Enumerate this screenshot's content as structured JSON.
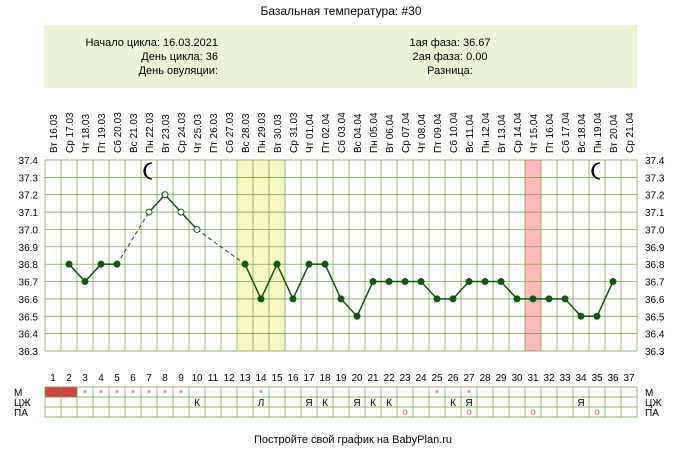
{
  "page": {
    "title": "Базальная температура: #30",
    "footer": "Постройте свой график на BabyPlan.ru"
  },
  "info": {
    "cycle_start_label": "Начало цикла: 16.03.2021",
    "cycle_day_label": "День цикла: 36",
    "ovulation_day_label": "День овуляции:",
    "phase1_label": "1ая фаза: 36.67",
    "phase2_label": "2ая фаза: 0.00",
    "difference_label": "Разница:"
  },
  "colors": {
    "line": "#0a5a0a",
    "grid": "#6c9c3c",
    "box": "#e9f5d6",
    "yellow_band": "#f7f7c4",
    "pink_band": "#ffb9b9",
    "menses": "#cf4545",
    "star": "#e06060"
  },
  "chart_data": {
    "type": "line",
    "title": "Базальная температура: #30",
    "ylim": [
      36.3,
      37.4
    ],
    "yticks": [
      "37.4",
      "37.3",
      "37.2",
      "37.1",
      "37.0",
      "36.9",
      "36.8",
      "36.7",
      "36.6",
      "36.5",
      "36.4",
      "36.3"
    ],
    "grid": true,
    "dates": [
      "Вт 16.03",
      "Ср 17.03",
      "Чт 18.03",
      "Пт 19.03",
      "Сб 20.03",
      "Вс 21.03",
      "Пн 22.03",
      "Вт 23.03",
      "Ср 24.03",
      "Чт 25.03",
      "Пт 26.03",
      "Сб 27.03",
      "Вс 28.03",
      "Пн 29.03",
      "Вт 30.03",
      "Ср 31.03",
      "Чт 01.04",
      "Пт 02.04",
      "Сб 03.04",
      "Вс 04.04",
      "Пн 05.04",
      "Вт 06.04",
      "Ср 07.04",
      "Чт 08.04",
      "Пт 09.04",
      "Сб 10.04",
      "Вс 11.04",
      "Пн 12.04",
      "Вт 13.04",
      "Ср 14.04",
      "Чт 15.04",
      "Пт 16.04",
      "Сб 17.04",
      "Вс 18.04",
      "Пн 19.04",
      "Вт 20.04",
      "Ср 21.04"
    ],
    "days": [
      "1",
      "2",
      "3",
      "4",
      "5",
      "6",
      "7",
      "8",
      "9",
      "10",
      "11",
      "12",
      "13",
      "14",
      "15",
      "16",
      "17",
      "18",
      "19",
      "20",
      "21",
      "22",
      "23",
      "24",
      "25",
      "26",
      "27",
      "28",
      "29",
      "30",
      "31",
      "32",
      "33",
      "34",
      "35",
      "36",
      "37"
    ],
    "series": [
      {
        "values": [
          null,
          36.8,
          36.7,
          36.8,
          36.8,
          null,
          37.1,
          37.2,
          37.1,
          37.0,
          null,
          null,
          36.8,
          36.6,
          36.8,
          36.6,
          36.8,
          36.8,
          36.6,
          36.5,
          36.7,
          36.7,
          36.7,
          36.7,
          36.6,
          36.6,
          36.7,
          36.7,
          36.7,
          36.6,
          36.6,
          36.6,
          36.6,
          36.5,
          36.5,
          36.7,
          null
        ],
        "open_points": [
          6,
          7,
          8,
          9
        ]
      }
    ],
    "dashed_segments": [
      [
        5,
        7
      ],
      [
        10,
        13
      ]
    ],
    "highlight_bands": [
      {
        "from_day": 13,
        "to_day": 15,
        "color": "yellow"
      },
      {
        "from_day": 31,
        "to_day": 31,
        "color": "pink"
      }
    ],
    "moon_days": [
      7,
      35
    ],
    "row_labels": [
      "М",
      "ЦЖ",
      "ПА"
    ],
    "menses_days": [
      1,
      2
    ],
    "star_days": [
      3,
      4,
      5,
      6,
      7,
      8,
      9,
      14,
      25,
      27
    ],
    "cm_marks": [
      {
        "day": 10,
        "text": "К"
      },
      {
        "day": 14,
        "text": "Л"
      },
      {
        "day": 17,
        "text": "Я"
      },
      {
        "day": 18,
        "text": "К"
      },
      {
        "day": 20,
        "text": "Я"
      },
      {
        "day": 21,
        "text": "К"
      },
      {
        "day": 22,
        "text": "К"
      },
      {
        "day": 26,
        "text": "К"
      },
      {
        "day": 27,
        "text": "Я"
      },
      {
        "day": 34,
        "text": "Я"
      }
    ],
    "pa_marks": [
      {
        "day": 23,
        "text": "о"
      },
      {
        "day": 27,
        "text": "о"
      },
      {
        "day": 31,
        "text": "о"
      },
      {
        "day": 35,
        "text": "о"
      }
    ]
  }
}
